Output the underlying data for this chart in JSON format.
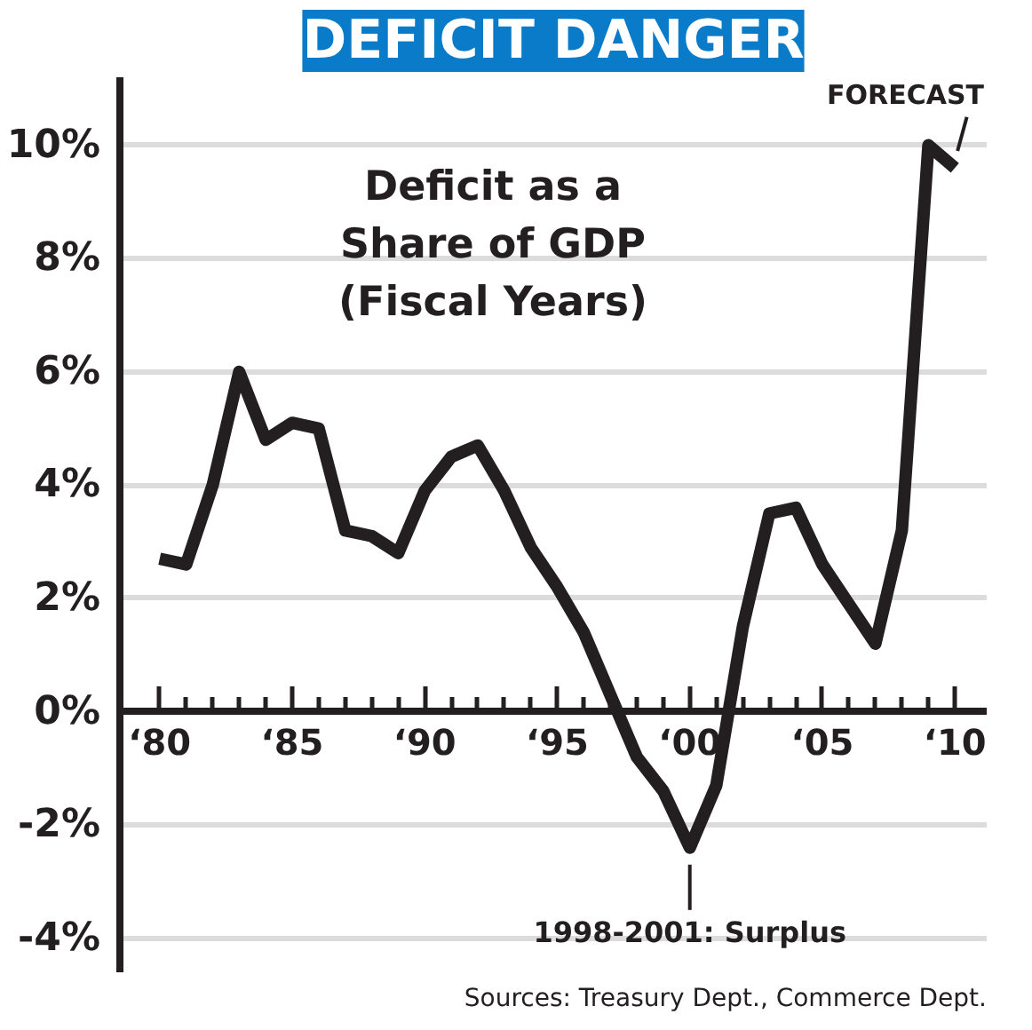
{
  "chart_data": {
    "type": "line",
    "title": "DEFICIT DANGER",
    "subtitle": "Deficit as a\nShare of GDP\n(Fiscal Years)",
    "categories": [
      "‘80",
      null,
      null,
      null,
      null,
      "‘85",
      null,
      null,
      null,
      null,
      "‘90",
      null,
      null,
      null,
      null,
      "‘95",
      null,
      null,
      null,
      null,
      "‘00",
      null,
      null,
      null,
      null,
      "‘05",
      null,
      null,
      null,
      null,
      "‘10"
    ],
    "series": [
      {
        "color": "#231f20",
        "values": [
          2.7,
          2.6,
          4.0,
          6.0,
          4.8,
          5.1,
          5.0,
          3.2,
          3.1,
          2.8,
          3.9,
          4.5,
          4.7,
          3.9,
          2.9,
          2.2,
          1.4,
          0.3,
          -0.8,
          -1.4,
          -2.4,
          -1.3,
          1.5,
          3.5,
          3.6,
          2.6,
          1.9,
          1.2,
          3.2,
          10.0,
          9.6
        ]
      }
    ],
    "ylim": [
      -4.6,
      11.2
    ],
    "yticks": [
      {
        "value": -4,
        "label": "-4%"
      },
      {
        "value": -2,
        "label": "-2%"
      },
      {
        "value": 0,
        "label": "0%"
      },
      {
        "value": 2,
        "label": "2%"
      },
      {
        "value": 4,
        "label": "4%"
      },
      {
        "value": 6,
        "label": "6%"
      },
      {
        "value": 8,
        "label": "8%"
      },
      {
        "value": 10,
        "label": "10%"
      }
    ],
    "grid": "y",
    "marker": "none",
    "line_style": "solid",
    "annotations": [
      {
        "text": "FORECAST",
        "x": "‘10",
        "y": 9.6
      },
      {
        "text": "1998-2001: Surplus",
        "x": "‘00",
        "y": -2.4
      },
      "Sources: Treasury Dept., Commerce Dept."
    ]
  }
}
